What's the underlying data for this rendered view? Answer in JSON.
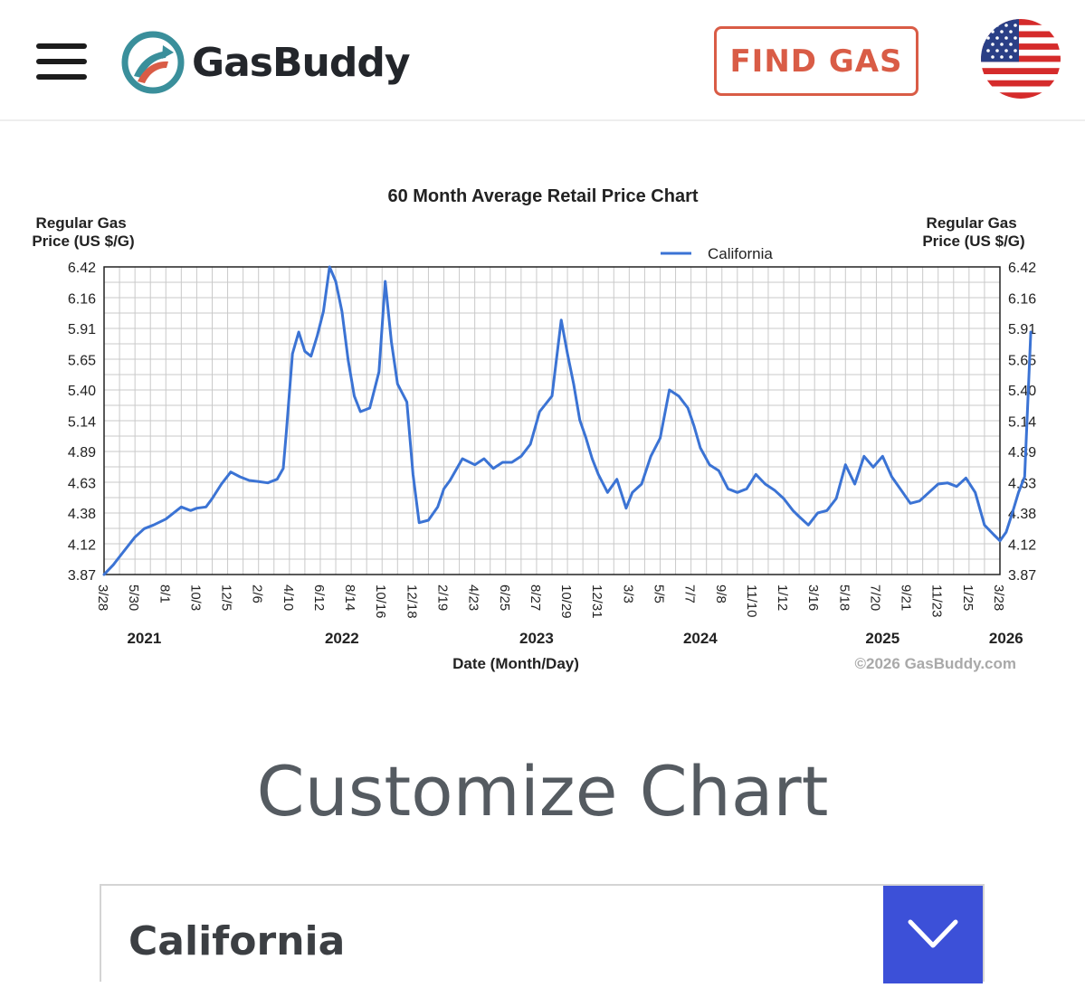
{
  "header": {
    "logo_text": "GasBuddy",
    "find_gas_label": "FIND GAS",
    "menu_icon": "hamburger-menu-icon",
    "flag_icon": "us-flag-icon"
  },
  "colors": {
    "accent": "#d95c46",
    "line": "#3b73d4",
    "select_button": "#3c50d8",
    "logo_teal": "#3a8f9b"
  },
  "chart_data": {
    "type": "line",
    "title": "60 Month Average Retail Price Chart",
    "ylabel_left": [
      "Regular Gas",
      "Price (US $/G)"
    ],
    "ylabel_right": [
      "Regular Gas",
      "Price (US $/G)"
    ],
    "xlabel": "Date (Month/Day)",
    "copyright": "©2026 GasBuddy.com",
    "legend": {
      "name": "California",
      "position": "top-right"
    },
    "grid": true,
    "ylim": [
      3.87,
      6.42
    ],
    "yticks": [
      "6.42",
      "6.16",
      "5.91",
      "5.65",
      "5.40",
      "5.14",
      "4.89",
      "4.63",
      "4.38",
      "4.12",
      "3.87"
    ],
    "xticks": [
      "3/28",
      "5/30",
      "8/1",
      "10/3",
      "12/5",
      "2/6",
      "4/10",
      "6/12",
      "8/14",
      "10/16",
      "12/18",
      "2/19",
      "4/23",
      "6/25",
      "8/27",
      "10/29",
      "12/31",
      "3/3",
      "5/5",
      "7/7",
      "9/8",
      "11/10",
      "1/12",
      "3/16",
      "5/18",
      "7/20",
      "9/21",
      "11/23",
      "1/25",
      "3/28"
    ],
    "years": [
      {
        "label": "2021",
        "tick": 1.3
      },
      {
        "label": "2022",
        "tick": 7.7
      },
      {
        "label": "2023",
        "tick": 14.0
      },
      {
        "label": "2024",
        "tick": 19.3
      },
      {
        "label": "2025",
        "tick": 25.2
      },
      {
        "label": "2026",
        "tick": 29.2
      }
    ],
    "series": [
      {
        "name": "California",
        "x": [
          0,
          0.3,
          0.6,
          1.0,
          1.3,
          1.6,
          2.0,
          2.5,
          2.8,
          3.0,
          3.3,
          3.5,
          3.8,
          4.1,
          4.4,
          4.7,
          5.0,
          5.3,
          5.6,
          5.8,
          5.9,
          6.1,
          6.3,
          6.5,
          6.7,
          6.9,
          7.1,
          7.3,
          7.5,
          7.7,
          7.9,
          8.1,
          8.3,
          8.6,
          8.9,
          9.1,
          9.3,
          9.5,
          9.6,
          9.8,
          10.0,
          10.2,
          10.5,
          10.8,
          11.0,
          11.2,
          11.6,
          12.0,
          12.3,
          12.6,
          12.9,
          13.2,
          13.5,
          13.8,
          14.1,
          14.5,
          14.8,
          15.0,
          15.2,
          15.4,
          15.6,
          15.8,
          16.0,
          16.3,
          16.6,
          16.9,
          17.1,
          17.4,
          17.7,
          18.0,
          18.3,
          18.6,
          18.9,
          19.1,
          19.3,
          19.6,
          19.9,
          20.2,
          20.5,
          20.8,
          21.1,
          21.4,
          21.7,
          22.0,
          22.3,
          22.5,
          22.8,
          23.1,
          23.4,
          23.7,
          24.0,
          24.3,
          24.6,
          24.9,
          25.2,
          25.5,
          25.8,
          26.1,
          26.4,
          26.7,
          27.0,
          27.3,
          27.6,
          27.9,
          28.2,
          28.5,
          28.8,
          29.0,
          29.2,
          29.4,
          29.6,
          29.8,
          30.0
        ],
        "y": [
          3.87,
          3.95,
          4.05,
          4.18,
          4.25,
          4.28,
          4.33,
          4.43,
          4.4,
          4.42,
          4.43,
          4.5,
          4.62,
          4.72,
          4.68,
          4.65,
          4.64,
          4.63,
          4.66,
          4.75,
          5.05,
          5.7,
          5.88,
          5.72,
          5.68,
          5.85,
          6.05,
          6.42,
          6.3,
          6.05,
          5.65,
          5.35,
          5.22,
          5.25,
          5.55,
          6.3,
          5.8,
          5.45,
          5.4,
          5.3,
          4.7,
          4.3,
          4.32,
          4.43,
          4.58,
          4.65,
          4.83,
          4.78,
          4.83,
          4.75,
          4.8,
          4.8,
          4.85,
          4.95,
          5.22,
          5.35,
          5.98,
          5.7,
          5.45,
          5.15,
          5.0,
          4.83,
          4.7,
          4.55,
          4.66,
          4.42,
          4.55,
          4.62,
          4.85,
          5.0,
          5.4,
          5.35,
          5.25,
          5.1,
          4.92,
          4.78,
          4.73,
          4.58,
          4.55,
          4.58,
          4.7,
          4.62,
          4.57,
          4.5,
          4.4,
          4.35,
          4.28,
          4.38,
          4.4,
          4.5,
          4.78,
          4.62,
          4.85,
          4.76,
          4.85,
          4.68,
          4.57,
          4.46,
          4.48,
          4.55,
          4.62,
          4.63,
          4.6,
          4.67,
          4.55,
          4.28,
          4.2,
          4.15,
          4.22,
          4.38,
          4.55,
          4.68,
          5.88
        ]
      }
    ]
  },
  "customize": {
    "title": "Customize Chart",
    "select_value": "California",
    "select_icon": "chevron-down-icon"
  }
}
